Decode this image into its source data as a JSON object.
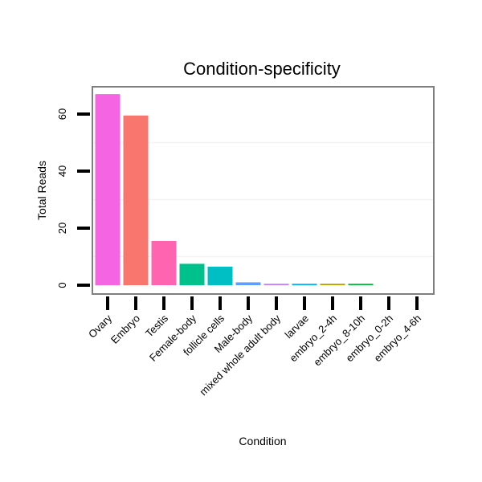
{
  "chart_data": {
    "type": "bar",
    "title": "Condition-specificity",
    "xlabel": "Condition",
    "ylabel": "Total Reads",
    "ylim": [
      -2,
      70
    ],
    "yticks": [
      0,
      20,
      40,
      60
    ],
    "grid": true,
    "legend": "none",
    "categories": [
      "Ovary",
      "Embryo",
      "Testis",
      "Female-body",
      "follicle cells",
      "Male-body",
      "mixed whole adult body",
      "larvae",
      "embryo_2-4h",
      "embryo_8-10h",
      "embryo_0-2h",
      "embryo_4-6h"
    ],
    "values": [
      67,
      59.5,
      15.5,
      7.5,
      6.5,
      1,
      0.5,
      0.5,
      0.5,
      0.5,
      0,
      0
    ],
    "colors": [
      "#f564e3",
      "#f8766d",
      "#ff64b0",
      "#00c08b",
      "#00bfc4",
      "#619cff",
      "#c77cff",
      "#00b4f0",
      "#b79f00",
      "#00ba38",
      "#de8c00",
      "#7cae00"
    ]
  }
}
